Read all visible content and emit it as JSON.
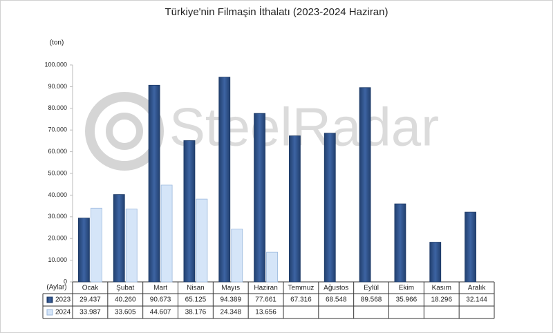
{
  "chart_data": {
    "type": "bar",
    "title": "Türkiye'nin Filmaşin İthalatı (2023-2024 Haziran)",
    "y_label": "(ton)",
    "x_label": "(Aylar)",
    "watermark": "SteelRadar",
    "categories": [
      "Ocak",
      "Şubat",
      "Mart",
      "Nisan",
      "Mayıs",
      "Haziran",
      "Temmuz",
      "Ağustos",
      "Eylül",
      "Ekim",
      "Kasım",
      "Aralık"
    ],
    "series": [
      {
        "name": "2023",
        "color": "#2f5189",
        "values": [
          29437,
          40260,
          90673,
          65125,
          94389,
          77661,
          67316,
          68548,
          89568,
          35966,
          18296,
          32144
        ],
        "value_labels": [
          "29.437",
          "40.260",
          "90.673",
          "65.125",
          "94.389",
          "77.661",
          "67.316",
          "68.548",
          "89.568",
          "35.966",
          "18.296",
          "32.144"
        ]
      },
      {
        "name": "2024",
        "color": "#d5e5f8",
        "values": [
          33987,
          33605,
          44607,
          38176,
          24348,
          13656,
          null,
          null,
          null,
          null,
          null,
          null
        ],
        "value_labels": [
          "33.987",
          "33.605",
          "44.607",
          "38.176",
          "24.348",
          "13.656",
          null,
          null,
          null,
          null,
          null,
          null
        ]
      }
    ],
    "ylim": [
      0,
      100000
    ],
    "yticks": [
      0,
      {
        "value": 10000,
        "label": "10.000"
      },
      {
        "value": 20000,
        "label": "20.000"
      },
      {
        "value": 30000,
        "label": "30.000"
      },
      {
        "value": 40000,
        "label": "40.000"
      },
      {
        "value": 50000,
        "label": "50.000"
      },
      {
        "value": 60000,
        "label": "60.000"
      },
      {
        "value": 70000,
        "label": "70.000"
      },
      {
        "value": 80000,
        "label": "80.000"
      },
      {
        "value": 90000,
        "label": "90.000"
      },
      {
        "value": 100000,
        "label": "100.000"
      }
    ],
    "grid": false
  }
}
